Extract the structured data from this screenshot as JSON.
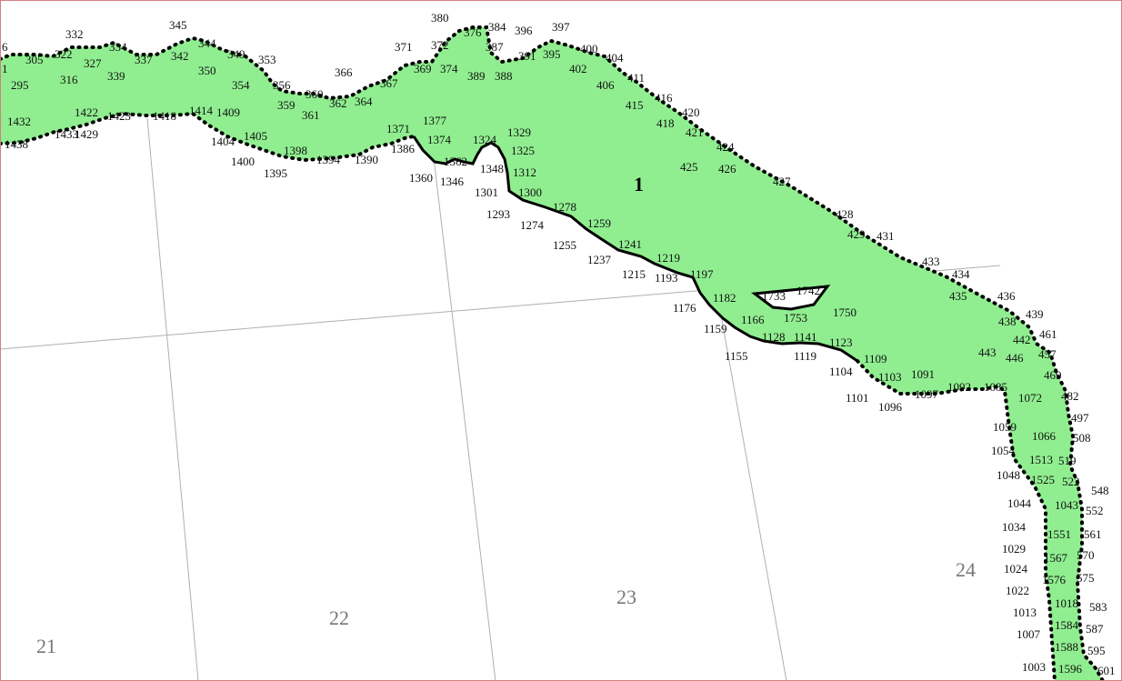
{
  "colors": {
    "polygon_fill": "#90ee90",
    "grid": "#b0b0b0",
    "border": "#d08080",
    "zone_label": "#777777"
  },
  "polygon_label": "1",
  "zone_labels": [
    "21",
    "22",
    "23",
    "24"
  ],
  "vertex_labels": [
    "6",
    "1",
    "295",
    "305",
    "322",
    "327",
    "332",
    "316",
    "334",
    "339",
    "337",
    "342",
    "345",
    "344",
    "350",
    "349",
    "353",
    "354",
    "356",
    "359",
    "360",
    "361",
    "362",
    "364",
    "366",
    "367",
    "371",
    "369",
    "372",
    "374",
    "380",
    "376",
    "384",
    "387",
    "389",
    "388",
    "396",
    "391",
    "395",
    "397",
    "400",
    "402",
    "404",
    "406",
    "411",
    "415",
    "416",
    "418",
    "420",
    "421",
    "424",
    "425",
    "426",
    "427",
    "428",
    "429",
    "431",
    "433",
    "434",
    "435",
    "436",
    "438",
    "439",
    "461",
    "442",
    "443",
    "446",
    "457",
    "469",
    "482",
    "497",
    "508",
    "519",
    "522",
    "548",
    "552",
    "561",
    "570",
    "575",
    "583",
    "587",
    "595",
    "601",
    "1432",
    "1438",
    "1433",
    "1429",
    "1422",
    "1423",
    "1418",
    "1414",
    "1409",
    "1404",
    "1405",
    "1400",
    "1398",
    "1395",
    "1394",
    "1390",
    "1371",
    "1377",
    "1386",
    "1374",
    "1360",
    "1362",
    "1346",
    "1348",
    "1324",
    "1329",
    "1325",
    "1312",
    "1301",
    "1300",
    "1293",
    "1278",
    "1274",
    "1259",
    "1255",
    "1241",
    "1237",
    "1219",
    "1215",
    "1193",
    "1197",
    "1182",
    "1176",
    "1166",
    "1159",
    "1155",
    "1128",
    "1141",
    "1119",
    "1123",
    "1104",
    "1109",
    "1103",
    "1091",
    "1101",
    "1096",
    "1097",
    "1092",
    "1085",
    "1072",
    "1059",
    "1066",
    "1054",
    "1513",
    "1048",
    "1525",
    "1044",
    "1043",
    "1034",
    "1551",
    "1029",
    "1567",
    "1024",
    "1576",
    "1022",
    "1013",
    "1018",
    "1007",
    "1584",
    "1588",
    "1003",
    "1596",
    "1733",
    "1742",
    "1753",
    "1750"
  ]
}
